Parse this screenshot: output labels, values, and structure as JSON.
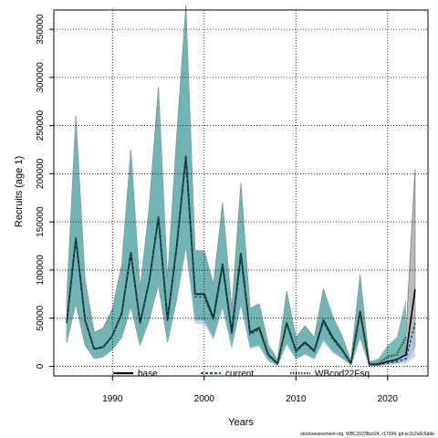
{
  "chart_data": {
    "type": "line",
    "xlabel": "Years",
    "ylabel": "Recruits (age 1)",
    "xlim": [
      1983.6,
      2024.4
    ],
    "ylim": [
      -10000,
      370000
    ],
    "x_ticks": [
      1990,
      2000,
      2010,
      2020
    ],
    "y_ticks": [
      0,
      50000,
      100000,
      150000,
      200000,
      250000,
      300000,
      350000
    ],
    "grid": true,
    "legend_position": "bottom",
    "footer": "stockassessment.org, WBC2023fbsr24, r17394, git:ec2c2a0c6dde",
    "years": [
      1985,
      1986,
      1987,
      1988,
      1989,
      1990,
      1991,
      1992,
      1993,
      1994,
      1995,
      1996,
      1997,
      1998,
      1999,
      2000,
      2001,
      2002,
      2003,
      2004,
      2005,
      2006,
      2007,
      2008,
      2009,
      2010,
      2011,
      2012,
      2013,
      2014,
      2015,
      2016,
      2017,
      2018,
      2019,
      2020,
      2021,
      2022,
      2023
    ],
    "series": [
      {
        "name": "base",
        "line": "solid",
        "color": "#000000",
        "band_color": "#9e9e9e",
        "values": [
          45000,
          133000,
          48000,
          18000,
          20000,
          32000,
          55000,
          118000,
          45000,
          88000,
          155000,
          48000,
          125000,
          218000,
          75000,
          75000,
          50000,
          106000,
          35000,
          117000,
          35000,
          40000,
          12000,
          3000,
          45000,
          16000,
          25000,
          16000,
          48000,
          30000,
          18000,
          3000,
          57000,
          2000,
          2000,
          5000,
          7000,
          12000,
          80000
        ],
        "lower": [
          25000,
          65000,
          22000,
          8000,
          10000,
          18000,
          30000,
          62000,
          22000,
          48000,
          85000,
          25000,
          70000,
          125000,
          48000,
          48000,
          30000,
          62000,
          20000,
          65000,
          20000,
          22000,
          6000,
          1000,
          24000,
          8000,
          13000,
          8000,
          28000,
          16000,
          9000,
          1500,
          30000,
          1000,
          1000,
          2500,
          3500,
          6000,
          20000
        ],
        "upper": [
          70000,
          260000,
          90000,
          35000,
          40000,
          60000,
          105000,
          225000,
          80000,
          165000,
          290000,
          90000,
          240000,
          375000,
          120000,
          120000,
          85000,
          170000,
          60000,
          190000,
          60000,
          65000,
          22000,
          7000,
          78000,
          30000,
          42000,
          30000,
          80000,
          52000,
          32000,
          6000,
          95000,
          5000,
          5000,
          10000,
          15000,
          35000,
          205000
        ]
      },
      {
        "name": "current",
        "line": "dashed",
        "color": "#1f4f8a",
        "band_color": "#a9c8e6",
        "values": [
          45000,
          133000,
          48000,
          18000,
          20000,
          32000,
          55000,
          118000,
          45000,
          88000,
          155000,
          48000,
          125000,
          218000,
          72000,
          72000,
          48000,
          104000,
          33000,
          115000,
          33000,
          38000,
          11000,
          2500,
          44000,
          15000,
          24000,
          15000,
          46000,
          28000,
          17000,
          2500,
          55000,
          1500,
          1500,
          3500,
          5000,
          8000,
          45000
        ],
        "lower": [
          25000,
          65000,
          22000,
          8000,
          10000,
          18000,
          30000,
          62000,
          22000,
          48000,
          85000,
          25000,
          70000,
          125000,
          44000,
          44000,
          27000,
          60000,
          18000,
          62000,
          18000,
          20000,
          5000,
          800,
          22000,
          7000,
          12000,
          7000,
          25000,
          14000,
          8000,
          1200,
          28000,
          700,
          700,
          1500,
          2000,
          3000,
          10000
        ],
        "upper": [
          70000,
          258000,
          88000,
          34000,
          39000,
          59000,
          103000,
          222000,
          78000,
          162000,
          286000,
          88000,
          236000,
          370000,
          117000,
          117000,
          82000,
          166000,
          58000,
          186000,
          58000,
          62000,
          20000,
          6000,
          76000,
          28000,
          40000,
          28000,
          78000,
          50000,
          30000,
          5000,
          92000,
          4000,
          4000,
          8000,
          10000,
          20000,
          35000
        ]
      },
      {
        "name": "WBcod22Fsq",
        "line": "dotted",
        "color": "#1a4a2c",
        "band_color": "#66b2ad",
        "values": [
          45000,
          133000,
          48000,
          18000,
          20000,
          32000,
          55000,
          118000,
          45000,
          88000,
          155000,
          48000,
          125000,
          218000,
          75000,
          75000,
          50000,
          106000,
          35000,
          117000,
          35000,
          40000,
          12000,
          3000,
          45000,
          16000,
          25000,
          16000,
          48000,
          30000,
          18000,
          3000,
          57000,
          2000,
          3000,
          10000,
          12000,
          30000
        ],
        "lower": [
          25000,
          65000,
          22000,
          8000,
          10000,
          18000,
          30000,
          62000,
          22000,
          48000,
          85000,
          25000,
          70000,
          125000,
          48000,
          48000,
          30000,
          62000,
          20000,
          65000,
          20000,
          22000,
          6000,
          1000,
          24000,
          8000,
          13000,
          8000,
          28000,
          16000,
          9000,
          1500,
          30000,
          1000,
          1500,
          5000,
          6000,
          12000
        ],
        "upper": [
          70000,
          260000,
          90000,
          35000,
          40000,
          60000,
          105000,
          225000,
          80000,
          165000,
          290000,
          90000,
          240000,
          375000,
          120000,
          120000,
          85000,
          170000,
          60000,
          190000,
          60000,
          65000,
          22000,
          7000,
          78000,
          30000,
          42000,
          30000,
          80000,
          52000,
          32000,
          6000,
          95000,
          5000,
          8000,
          22000,
          30000,
          70000
        ]
      }
    ]
  }
}
